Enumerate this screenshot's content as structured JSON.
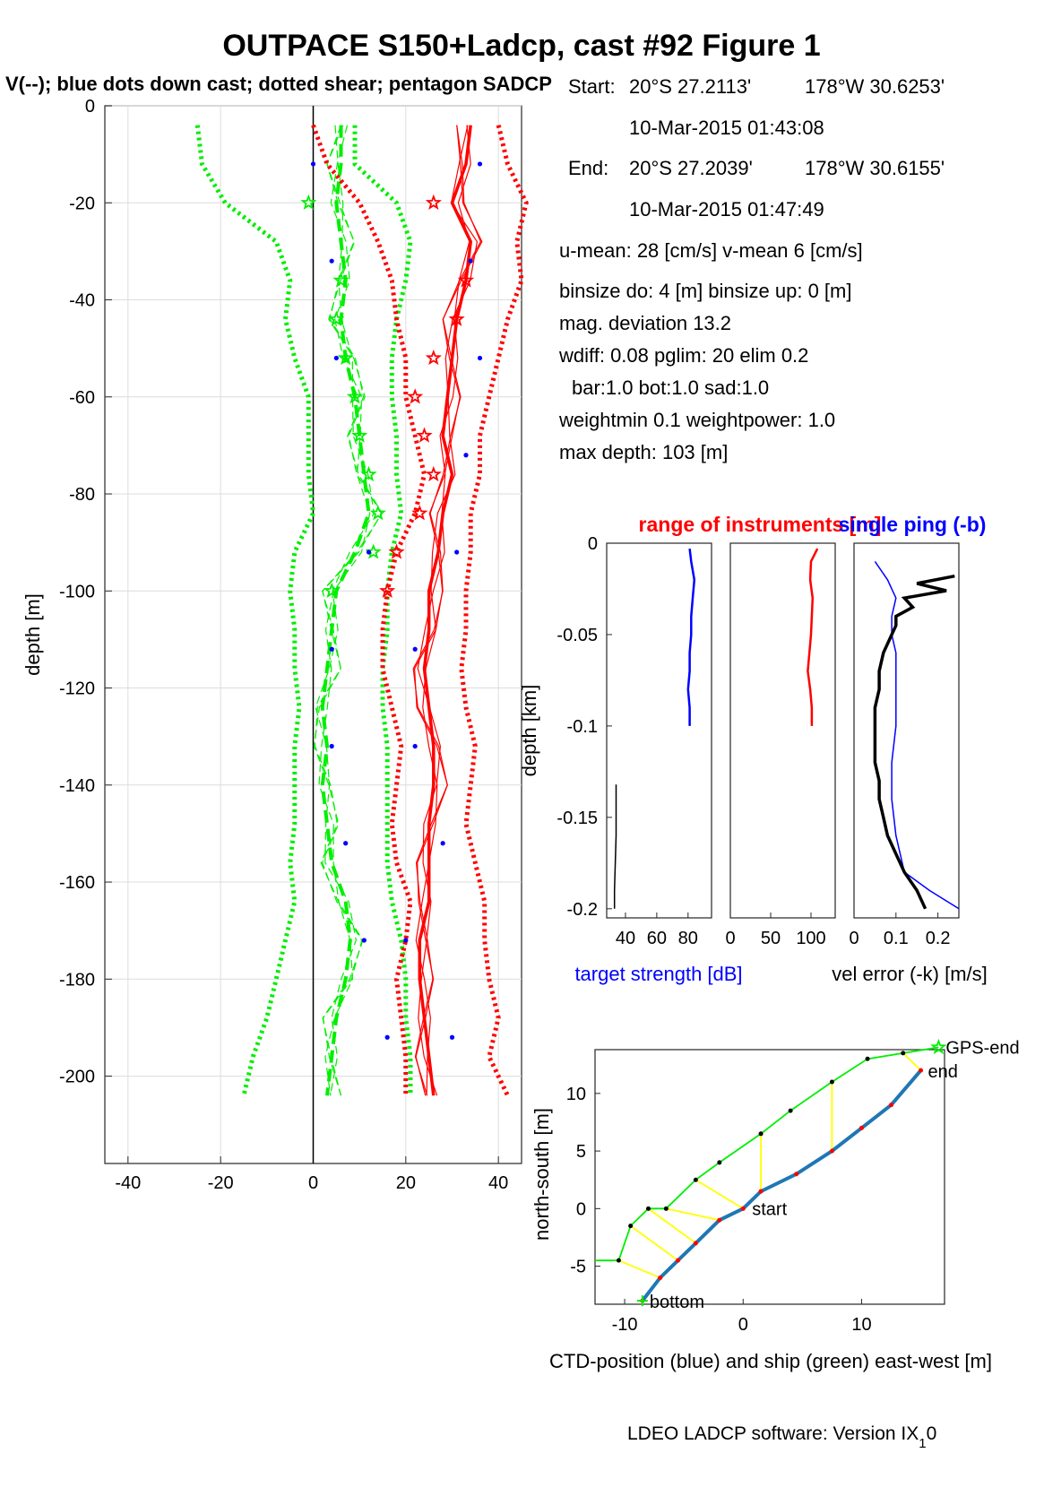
{
  "title": "OUTPACE S150+Ladcp, cast #92  Figure 1",
  "subtitle": "V(--); blue dots down cast; dotted shear; pentagon SADCP",
  "info": {
    "start_label": "Start:",
    "start_lat": "20°S 27.2113'",
    "start_lon": "178°W 30.6253'",
    "start_time": "10-Mar-2015 01:43:08",
    "end_label": "End:",
    "end_lat": "20°S 27.2039'",
    "end_lon": "178°W 30.6155'",
    "end_time": "10-Mar-2015 01:47:49",
    "means": "u-mean:  28 [cm/s]    v-mean   6 [cm/s]",
    "binsize": "binsize do: 4 [m]  binsize up:  0 [m]",
    "magdev": "mag. deviation 13.2",
    "wdiff": "wdiff: 0.08  pglim: 20  elim 0.2",
    "bar": "bar:1.0 bot:1.0 sad:1.0",
    "weight": "weightmin 0.1  weightpower: 1.0",
    "maxdepth": "max depth: 103 [m]"
  },
  "colors": {
    "u": "#ff0000",
    "v": "#00ee00",
    "blue": "#0000ff",
    "cast": "#1f77b4",
    "link": "#ffff00"
  },
  "footer": "LDEO LADCP software: Version IX",
  "footer_sub": "1",
  "footer_end": "0",
  "chart_data": [
    {
      "type": "line",
      "ylabel": "depth [m]",
      "xlim": [
        -45,
        45
      ],
      "ylim": [
        -218,
        0
      ],
      "xticks": [
        -40,
        -20,
        0,
        20,
        40
      ],
      "yticks": [
        0,
        -20,
        -40,
        -60,
        -80,
        -100,
        -120,
        -140,
        -160,
        -180,
        -200
      ],
      "grid": true,
      "depth": [
        -4,
        -12,
        -20,
        -28,
        -36,
        -44,
        -52,
        -60,
        -68,
        -76,
        -84,
        -92,
        -100,
        -108,
        -116,
        -124,
        -132,
        -140,
        -148,
        -156,
        -164,
        -172,
        -180,
        -188,
        -196,
        -204
      ],
      "u_main": [
        34,
        33,
        30,
        34,
        33,
        31,
        30,
        29,
        28,
        30,
        28,
        27,
        25,
        25,
        24,
        25,
        26,
        26,
        25,
        25,
        25,
        23,
        23,
        24,
        25,
        26
      ],
      "u_shear_left": [
        0,
        3,
        10,
        14,
        17,
        18,
        20,
        20,
        22,
        24,
        22,
        18,
        16,
        15,
        15,
        17,
        19,
        18,
        17,
        18,
        21,
        20,
        18,
        19,
        20,
        20
      ],
      "u_shear_right": [
        40,
        42,
        46,
        44,
        45,
        42,
        40,
        38,
        36,
        36,
        34,
        34,
        33,
        33,
        32,
        33,
        35,
        34,
        33,
        35,
        37,
        37,
        38,
        40,
        38,
        42
      ],
      "u_sadcp": [
        [
          26,
          -20
        ],
        [
          33,
          -36
        ],
        [
          31,
          -44
        ],
        [
          26,
          -52
        ],
        [
          22,
          -60
        ],
        [
          24,
          -68
        ],
        [
          26,
          -76
        ],
        [
          23,
          -84
        ],
        [
          18,
          -92
        ],
        [
          16,
          -100
        ]
      ],
      "v_main": [
        6,
        6,
        5,
        6,
        7,
        6,
        7,
        9,
        10,
        11,
        12,
        9,
        5,
        4,
        3,
        2,
        3,
        2,
        3,
        4,
        7,
        8,
        7,
        5,
        4,
        3
      ],
      "v_shear_left": [
        -25,
        -24,
        -19,
        -8,
        -5,
        -6,
        -4,
        -1,
        -1,
        -1,
        0,
        -4,
        -5,
        -4,
        -4,
        -3,
        -4,
        -4,
        -4,
        -5,
        -4,
        -6,
        -8,
        -10,
        -13,
        -15
      ],
      "v_shear_right": [
        9,
        9,
        18,
        21,
        20,
        18,
        17,
        17,
        18,
        18,
        19,
        17,
        16,
        16,
        15,
        15,
        16,
        16,
        16,
        16,
        17,
        19,
        20,
        20,
        21,
        21
      ],
      "v_sadcp": [
        [
          -1,
          -20
        ],
        [
          6,
          -36
        ],
        [
          5,
          -44
        ],
        [
          7,
          -52
        ],
        [
          9,
          -60
        ],
        [
          10,
          -68
        ],
        [
          12,
          -76
        ],
        [
          14,
          -84
        ],
        [
          13,
          -92
        ],
        [
          4,
          -100
        ]
      ],
      "blue_dots": [
        [
          0,
          -12
        ],
        [
          36,
          -12
        ],
        [
          4,
          -32
        ],
        [
          34,
          -32
        ],
        [
          5,
          -52
        ],
        [
          36,
          -52
        ],
        [
          33,
          -72
        ],
        [
          12,
          -92
        ],
        [
          31,
          -92
        ],
        [
          4,
          -112
        ],
        [
          22,
          -112
        ],
        [
          4,
          -132
        ],
        [
          22,
          -132
        ],
        [
          7,
          -152
        ],
        [
          28,
          -152
        ],
        [
          11,
          -172
        ],
        [
          20,
          -172
        ],
        [
          16,
          -192
        ],
        [
          30,
          -192
        ]
      ]
    },
    {
      "type": "line",
      "ylabel": "depth [km]",
      "xlabel": "target strength [dB]",
      "xticks": [
        40,
        60,
        80
      ],
      "yticks": [
        0,
        -0.05,
        -0.1,
        -0.15,
        -0.2
      ],
      "ylim": [
        -0.205,
        0
      ],
      "xlim": [
        28,
        95
      ],
      "depth": [
        -0.003,
        -0.01,
        -0.02,
        -0.03,
        -0.04,
        -0.05,
        -0.06,
        -0.07,
        -0.08,
        -0.09,
        -0.1
      ],
      "ts_blue": [
        81,
        82,
        84,
        83,
        82,
        82,
        81,
        81,
        80,
        81,
        81
      ],
      "ts_black": [
        [
          34,
          -0.132
        ],
        [
          34,
          -0.16
        ],
        [
          33,
          -0.19
        ],
        [
          33,
          -0.2
        ]
      ]
    },
    {
      "type": "line",
      "title": "range of instruments [m]",
      "xticks": [
        0,
        50,
        100
      ],
      "xlim": [
        0,
        130
      ],
      "depth": [
        -0.003,
        -0.01,
        -0.02,
        -0.03,
        -0.04,
        -0.05,
        -0.06,
        -0.07,
        -0.08,
        -0.09,
        -0.1
      ],
      "range": [
        108,
        100,
        99,
        102,
        101,
        100,
        98,
        96,
        99,
        101,
        101
      ]
    },
    {
      "type": "line",
      "title": "single ping (-b)",
      "xlabel": "vel error (-k) [m/s]",
      "xticks": [
        0,
        0.1,
        0.2
      ],
      "xlim": [
        0,
        0.25
      ],
      "depth_black": [
        -0.018,
        -0.022,
        -0.026,
        -0.03,
        -0.035,
        -0.04,
        -0.045,
        -0.05,
        -0.06,
        -0.07,
        -0.08,
        -0.09,
        -0.1,
        -0.11,
        -0.12,
        -0.13,
        -0.14,
        -0.15,
        -0.16,
        -0.17,
        -0.18,
        -0.19,
        -0.2
      ],
      "vel_black": [
        0.24,
        0.15,
        0.22,
        0.12,
        0.14,
        0.1,
        0.1,
        0.09,
        0.07,
        0.06,
        0.06,
        0.05,
        0.05,
        0.05,
        0.05,
        0.06,
        0.06,
        0.07,
        0.08,
        0.1,
        0.12,
        0.15,
        0.17
      ],
      "depth_blue": [
        -0.01,
        -0.02,
        -0.03,
        -0.04,
        -0.05,
        -0.06,
        -0.08,
        -0.1,
        -0.12,
        -0.14,
        -0.16,
        -0.17,
        -0.18,
        -0.19,
        -0.2
      ],
      "vel_blue": [
        0.05,
        0.08,
        0.1,
        0.09,
        0.09,
        0.1,
        0.1,
        0.1,
        0.09,
        0.09,
        0.1,
        0.11,
        0.12,
        0.18,
        0.25
      ]
    },
    {
      "type": "line",
      "ylabel": "north-south [m]",
      "xlabel": "CTD-position (blue) and ship (green) east-west [m]",
      "xlim": [
        -12.5,
        17
      ],
      "ylim": [
        -8.3,
        13.8
      ],
      "xticks": [
        -10,
        0,
        10
      ],
      "yticks": [
        10,
        5,
        0,
        -5
      ],
      "cast": [
        [
          -8.5,
          -8
        ],
        [
          -7,
          -6
        ],
        [
          -5.5,
          -4.5
        ],
        [
          -4,
          -3
        ],
        [
          -2,
          -1
        ],
        [
          0,
          0
        ],
        [
          1.5,
          1.5
        ],
        [
          4.5,
          3
        ],
        [
          7.5,
          5
        ],
        [
          10,
          7
        ],
        [
          12.5,
          9
        ],
        [
          15,
          12
        ]
      ],
      "ship": [
        [
          -12.5,
          -4.5
        ],
        [
          -10.5,
          -4.5
        ],
        [
          -9.5,
          -1.5
        ],
        [
          -8,
          0
        ],
        [
          -6.5,
          0
        ],
        [
          -4,
          2.5
        ],
        [
          -2,
          4
        ],
        [
          1.5,
          6.5
        ],
        [
          4,
          8.5
        ],
        [
          7.5,
          11
        ],
        [
          10.5,
          13
        ],
        [
          13.5,
          13.5
        ],
        [
          16.5,
          14
        ]
      ],
      "labels": {
        "start": "start",
        "end": "end",
        "gps_end": "GPS-end",
        "bottom": "bottom"
      }
    }
  ]
}
